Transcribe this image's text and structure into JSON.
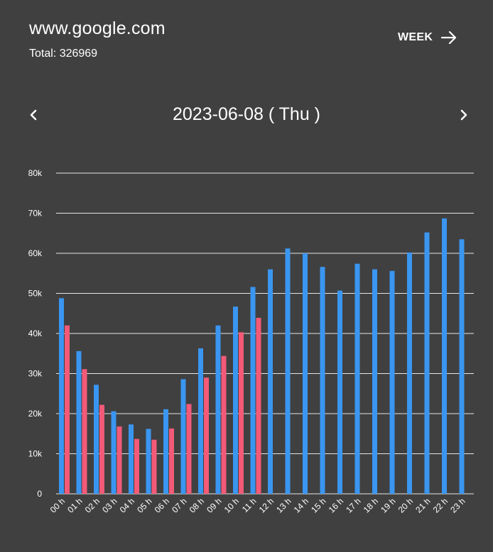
{
  "header": {
    "site": "www.google.com",
    "total": "Total: 326969",
    "week_label": "WEEK"
  },
  "date_nav": {
    "date": "2023-06-08 ( Thu )"
  },
  "colors": {
    "background": "#404040",
    "blue": "#3a96f0",
    "red": "#f25a78",
    "grid": "#e6e6e6"
  },
  "chart_data": {
    "type": "bar",
    "title": "",
    "xlabel": "",
    "ylabel": "",
    "ylim": [
      0,
      80000
    ],
    "yticks": [
      {
        "value": 0,
        "label": "0"
      },
      {
        "value": 10000,
        "label": "10k"
      },
      {
        "value": 20000,
        "label": "20k"
      },
      {
        "value": 30000,
        "label": "30k"
      },
      {
        "value": 40000,
        "label": "40k"
      },
      {
        "value": 50000,
        "label": "50k"
      },
      {
        "value": 60000,
        "label": "60k"
      },
      {
        "value": 70000,
        "label": "70k"
      },
      {
        "value": 80000,
        "label": "80k"
      }
    ],
    "categories": [
      "00 h",
      "01 h",
      "02 h",
      "03 h",
      "04 h",
      "05 h",
      "06 h",
      "07 h",
      "08 h",
      "09 h",
      "10 h",
      "11 h",
      "12 h",
      "13 h",
      "14 h",
      "15 h",
      "16 h",
      "17 h",
      "18 h",
      "19 h",
      "20 h",
      "21 h",
      "22 h",
      "23 h"
    ],
    "series": [
      {
        "name": "blue",
        "color": "#3a96f0",
        "values": [
          48800,
          35600,
          27200,
          20600,
          17300,
          16200,
          21100,
          28600,
          36300,
          42000,
          46700,
          51600,
          56000,
          61200,
          60000,
          56600,
          50700,
          57400,
          56000,
          55600,
          60200,
          65200,
          68700,
          63500
        ]
      },
      {
        "name": "red",
        "color": "#f25a78",
        "values": [
          42000,
          31100,
          22200,
          16800,
          13700,
          13500,
          16300,
          22400,
          29000,
          34400,
          40300,
          43900,
          null,
          null,
          null,
          null,
          null,
          null,
          null,
          null,
          null,
          null,
          null,
          null
        ]
      }
    ]
  }
}
